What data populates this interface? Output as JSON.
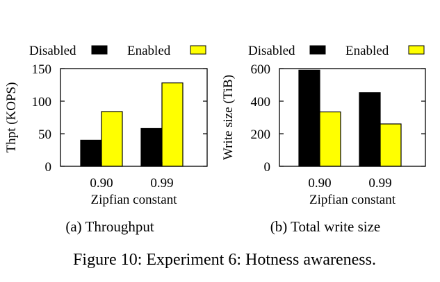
{
  "figure_caption": "Figure 10: Experiment 6: Hotness awareness.",
  "chart_data": [
    {
      "type": "bar",
      "subcaption": "(a) Throughput",
      "categories": [
        "0.90",
        "0.99"
      ],
      "series": [
        {
          "name": "Disabled",
          "values": [
            40,
            58
          ],
          "color": "#000000"
        },
        {
          "name": "Enabled",
          "values": [
            84,
            128
          ],
          "color": "#ffff00"
        }
      ],
      "xlabel": "Zipfian constant",
      "ylabel": "Thpt (KOPS)",
      "ylim": [
        0,
        150
      ],
      "yticks": [
        0,
        50,
        100,
        150
      ],
      "legend": "top"
    },
    {
      "type": "bar",
      "subcaption": "(b) Total write size",
      "categories": [
        "0.90",
        "0.99"
      ],
      "series": [
        {
          "name": "Disabled",
          "values": [
            590,
            452
          ],
          "color": "#000000"
        },
        {
          "name": "Enabled",
          "values": [
            334,
            260
          ],
          "color": "#ffff00"
        }
      ],
      "xlabel": "Zipfian constant",
      "ylabel": "Write size (TiB)",
      "ylim": [
        0,
        600
      ],
      "yticks": [
        0,
        200,
        400,
        600
      ],
      "legend": "top"
    }
  ]
}
